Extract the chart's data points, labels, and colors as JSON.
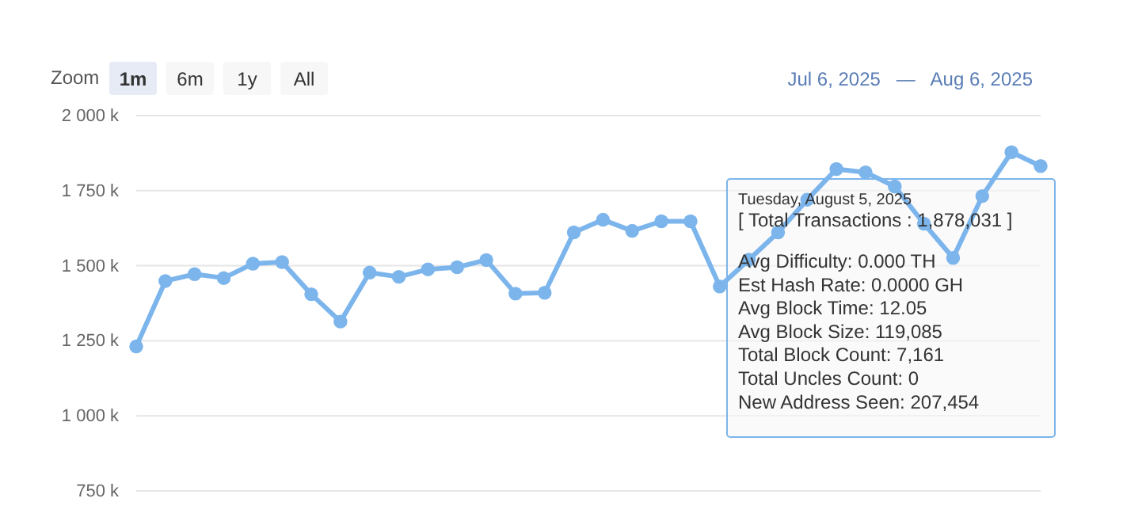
{
  "chart_data": {
    "type": "line",
    "categories": [
      null,
      null,
      null,
      null,
      null,
      null,
      null,
      null,
      null,
      null,
      null,
      null,
      null,
      null,
      null,
      null,
      null,
      null,
      null,
      null,
      null,
      null,
      null,
      null,
      null,
      null,
      null,
      null,
      null,
      null,
      null,
      null
    ],
    "series": [
      {
        "color": "#7cb5ec",
        "values": [
          1231000,
          1449000,
          1472000,
          1459000,
          1507000,
          1512000,
          1405000,
          1314000,
          1477000,
          1463000,
          1488000,
          1495000,
          1519000,
          1407000,
          1410000,
          1611000,
          1653000,
          1616000,
          1648000,
          1648000,
          1431000,
          1520000,
          1611000,
          1720000,
          1822000,
          1811000,
          1764000,
          1640000,
          1526000,
          1732000,
          1878031,
          1832000
        ]
      }
    ],
    "ylim": [
      750000,
      2000000
    ],
    "yticks": [
      {
        "value": 750000,
        "label": "750 k"
      },
      {
        "value": 1000000,
        "label": "1 000 k"
      },
      {
        "value": 1250000,
        "label": "1 250 k"
      },
      {
        "value": 1500000,
        "label": "1 500 k"
      },
      {
        "value": 1750000,
        "label": "1 750 k"
      },
      {
        "value": 2000000,
        "label": "2 000 k"
      }
    ],
    "grid": "y",
    "marker": "circle",
    "line_style": "solid",
    "tick_labels": "y",
    "annotations": [
      "Zoom",
      "1m",
      "6m",
      "1y",
      "All",
      "Jul 6, 2025   —   Aug 6, 2025",
      "Tuesday, August 5, 2025",
      "[ Total Transactions : 1,878,031 ]",
      "Avg Difficulty: 0.000 TH",
      "Est Hash Rate: 0.0000 GH",
      "Avg Block Time: 12.05",
      "Avg Block Size: 119,085",
      "Total Block Count: 7,161",
      "Total Uncles Count: 0",
      "New Address Seen: 207,454"
    ]
  }
}
